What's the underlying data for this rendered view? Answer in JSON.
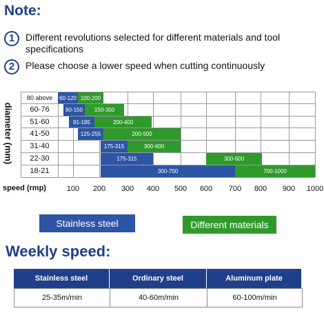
{
  "note": {
    "title": "Note:",
    "items": [
      {
        "number": "1",
        "text": "Different revolutions selected for different materials and tool specifications"
      },
      {
        "number": "2",
        "text": "Please choose a lower speed when cutting continuously"
      }
    ]
  },
  "grid": {
    "axis_label": "diameter (mm)",
    "rows": [
      {
        "label": "80 above",
        "blue": "60-120",
        "green": "100-200"
      },
      {
        "label": "60-76",
        "blue": "80-150",
        "green": "150-300"
      },
      {
        "label": "51-60",
        "blue": "91-195",
        "green": "200-400"
      },
      {
        "label": "41-50",
        "blue": "125-255",
        "green": "200-500"
      },
      {
        "label": "31-40",
        "blue": "175-315",
        "green": "300-600"
      },
      {
        "label": "22-30",
        "blue": "175-315",
        "green": "300-600"
      },
      {
        "label": "18-21",
        "blue": "300-700",
        "green": "700-1000"
      }
    ],
    "speed_label": "speed (rmp)",
    "speeds": [
      "100",
      "200",
      "300",
      "400",
      "500",
      "600",
      "700",
      "800",
      "900",
      "1000"
    ]
  },
  "legend": {
    "blue": "Stainless steel",
    "green": "Different materials"
  },
  "weekly": {
    "title": "Weekly speed:",
    "table": {
      "headers": [
        "Stainless steel",
        "Ordinary steel",
        "Aluminum plate"
      ],
      "rows": [
        [
          "25-35m/min",
          "40-60m/min",
          "60-100m/min"
        ]
      ]
    }
  }
}
